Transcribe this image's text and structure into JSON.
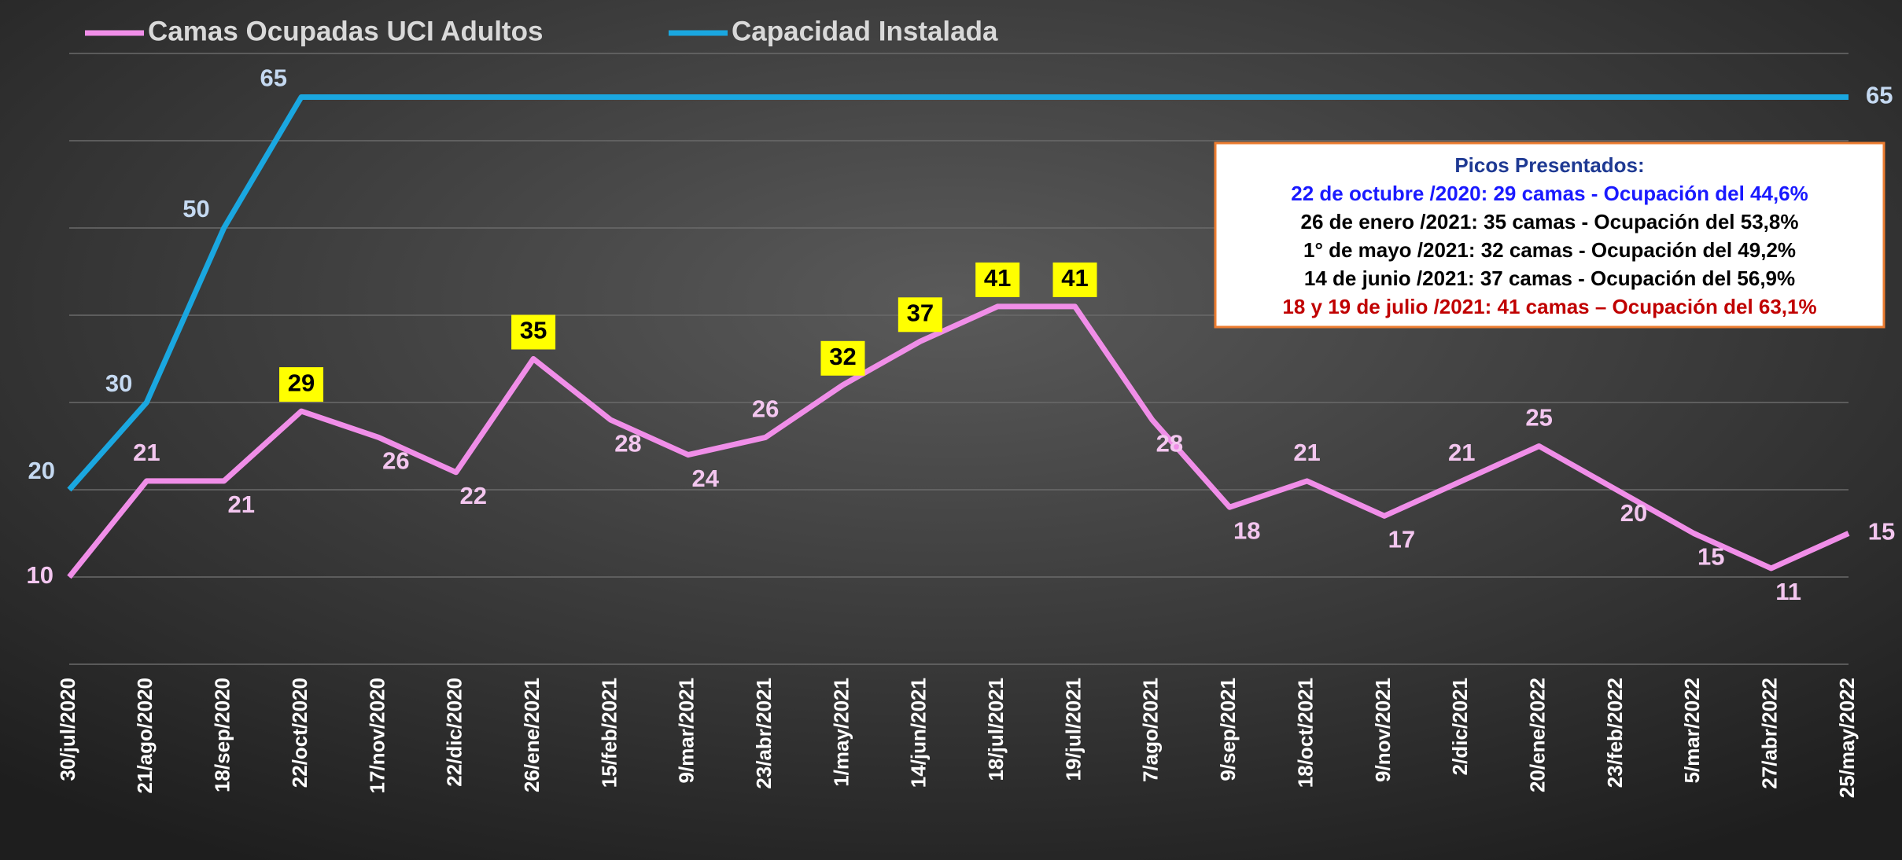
{
  "chart_data": {
    "type": "line",
    "categories": [
      "30/jul/2020",
      "21/ago/2020",
      "18/sep/2020",
      "22/oct/2020",
      "17/nov/2020",
      "22/dic/2020",
      "26/ene/2021",
      "15/feb/2021",
      "9/mar/2021",
      "23/abr/2021",
      "1/may/2021",
      "14/jun/2021",
      "18/jul/2021",
      "19/jul/2021",
      "7/ago/2021",
      "9/sep/2021",
      "18/oct/2021",
      "9/nov/2021",
      "2/dic/2021",
      "20/ene/2022",
      "23/feb/2022",
      "5/mar/2022",
      "27/abr/2022",
      "25/may/2022"
    ],
    "series": [
      {
        "name": "Camas Ocupadas UCI Adultos",
        "color": "#f08ee8",
        "values": [
          10,
          21,
          21,
          29,
          26,
          22,
          35,
          28,
          24,
          26,
          32,
          37,
          41,
          41,
          28,
          18,
          21,
          17,
          21,
          25,
          20,
          15,
          11,
          15
        ],
        "highlighted": [
          3,
          6,
          10,
          11,
          12,
          13
        ]
      },
      {
        "name": "Capacidad Instalada",
        "color": "#1aa7e0",
        "values": [
          20,
          30,
          50,
          65,
          65,
          65,
          65,
          65,
          65,
          65,
          65,
          65,
          65,
          65,
          65,
          65,
          65,
          65,
          65,
          65,
          65,
          65,
          65,
          65
        ],
        "value_labels": [
          "20",
          "30",
          "50",
          "65",
          null,
          null,
          null,
          null,
          null,
          null,
          null,
          null,
          null,
          null,
          null,
          null,
          null,
          null,
          null,
          null,
          null,
          null,
          null,
          "65"
        ]
      }
    ],
    "ylim": [
      0,
      70
    ],
    "yticks": [
      0,
      10,
      20,
      30,
      40,
      50,
      60,
      70
    ],
    "grid": true,
    "annotation": {
      "title": "Picos Presentados:",
      "lines": [
        {
          "text": "22 de octubre /2020: 29 camas - Ocupación del 44,6%",
          "color": "#1a1aff"
        },
        {
          "text": "26 de enero /2021: 35 camas - Ocupación del 53,8%",
          "color": "#000000"
        },
        {
          "text": "1° de mayo /2021: 32 camas - Ocupación del 49,2%",
          "color": "#000000"
        },
        {
          "text": "14 de junio /2021:  37 camas - Ocupación del 56,9%",
          "color": "#000000"
        },
        {
          "text": "18 y 19 de julio /2021: 41 camas – Ocupación del 63,1%",
          "color": "#c00000"
        }
      ]
    }
  }
}
